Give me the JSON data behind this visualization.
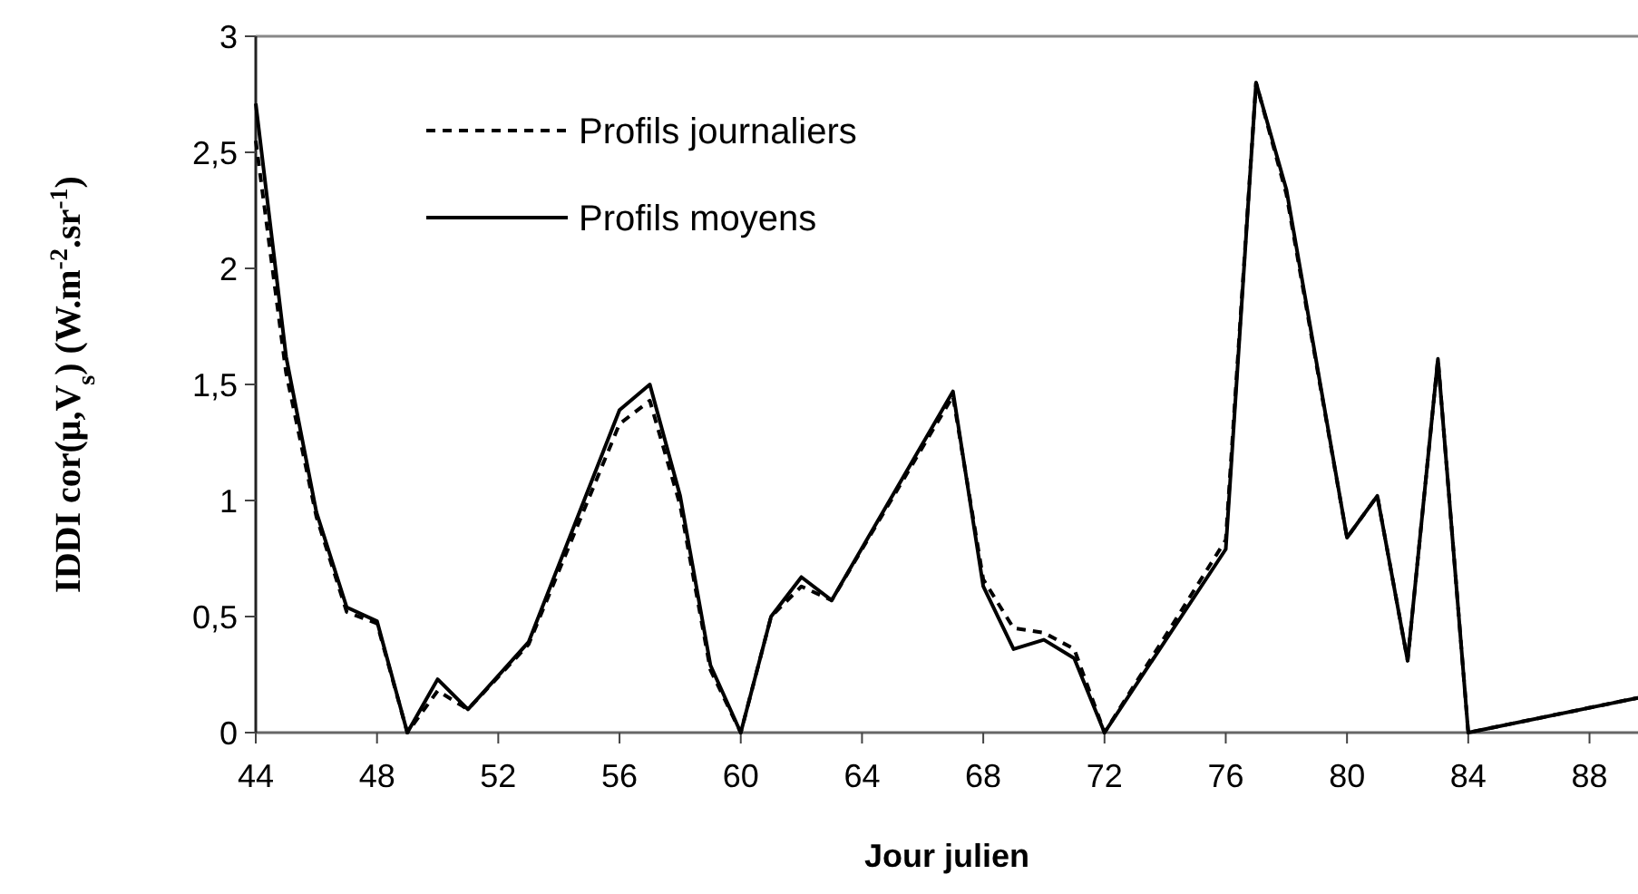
{
  "chart_data": {
    "type": "line",
    "xlabel": "Jour julien",
    "ylabel": "IDDI cor(μ,V$_{s}$) (W.m$^{-2}$.sr$^{-1}$)",
    "xlim": [
      44,
      89.6
    ],
    "xticks": [
      44,
      48,
      52,
      56,
      60,
      64,
      68,
      72,
      76,
      80,
      84,
      88
    ],
    "ylim": [
      0,
      3
    ],
    "yticks": [
      0,
      {
        "value": 0.5,
        "label": "0,5"
      },
      1,
      {
        "value": 1.5,
        "label": "1,5"
      },
      2,
      {
        "value": 2.5,
        "label": "2,5"
      },
      3
    ],
    "legend": "top left",
    "grid": false,
    "marker": "none",
    "series": [
      {
        "name": "Profils journaliers",
        "color": "#000000",
        "line_style": "dashed",
        "x": [
          44,
          45,
          46,
          47,
          48,
          49,
          50,
          51,
          53,
          56,
          57,
          58,
          59,
          60,
          61,
          62,
          63,
          67,
          68,
          69,
          70,
          71,
          72,
          76,
          77,
          78,
          80,
          81,
          82,
          83,
          84,
          89.6
        ],
        "values": [
          2.55,
          1.55,
          0.93,
          0.52,
          0.47,
          0,
          0.18,
          0.1,
          0.38,
          1.33,
          1.43,
          0.98,
          0.27,
          0,
          0.5,
          0.63,
          0.57,
          1.45,
          0.66,
          0.45,
          0.43,
          0.36,
          0,
          0.83,
          2.8,
          2.32,
          0.84,
          1.02,
          0.31,
          1.61,
          0,
          0.15
        ]
      },
      {
        "name": "Profils moyens",
        "color": "#000000",
        "line_style": "solid",
        "x": [
          44,
          45,
          46,
          47,
          48,
          49,
          50,
          51,
          53,
          56,
          57,
          58,
          59,
          60,
          61,
          62,
          63,
          67,
          68,
          69,
          70,
          71,
          72,
          76,
          77,
          78,
          80,
          81,
          82,
          83,
          84,
          89.6
        ],
        "values": [
          2.71,
          1.62,
          0.95,
          0.54,
          0.48,
          0,
          0.23,
          0.1,
          0.39,
          1.39,
          1.5,
          1.02,
          0.29,
          0,
          0.5,
          0.67,
          0.57,
          1.47,
          0.63,
          0.36,
          0.4,
          0.32,
          0,
          0.79,
          2.8,
          2.34,
          0.84,
          1.02,
          0.31,
          1.61,
          0,
          0.15
        ]
      }
    ]
  }
}
